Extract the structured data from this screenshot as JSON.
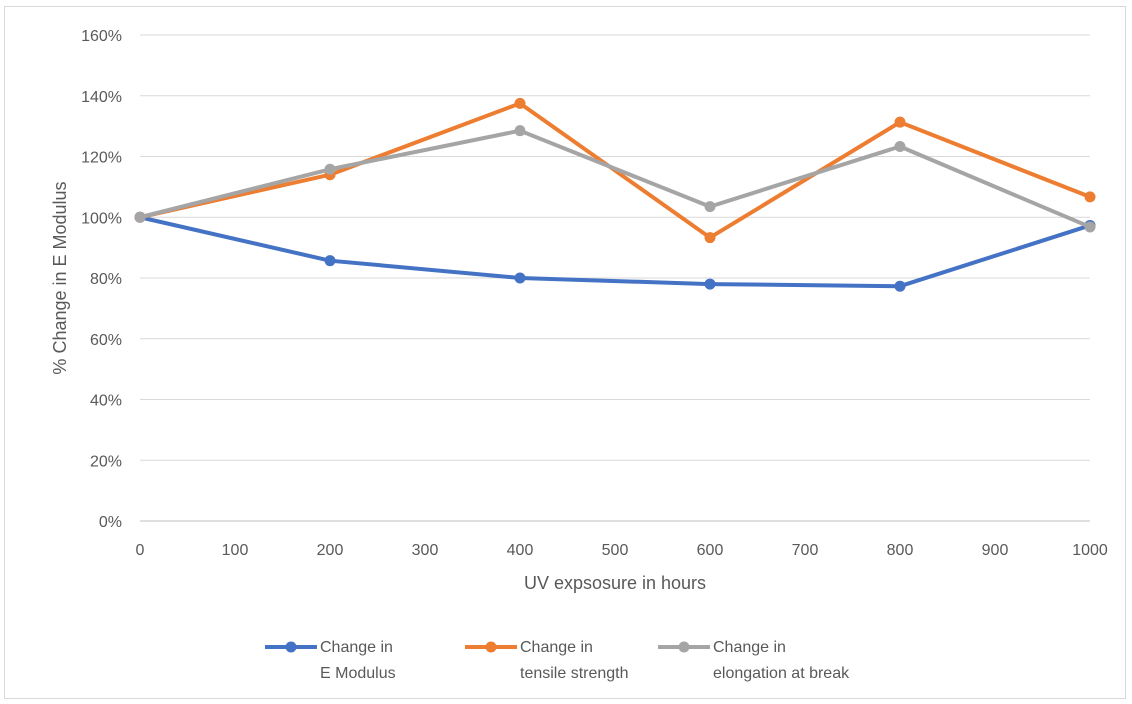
{
  "chart_data": {
    "type": "line",
    "title": "",
    "xlabel": "UV expsosure in hours",
    "ylabel": "% Change in E Modulus",
    "xlim": [
      0,
      1000
    ],
    "ylim": [
      0,
      160
    ],
    "x_ticks": [
      "0",
      "100",
      "200",
      "300",
      "400",
      "500",
      "600",
      "700",
      "800",
      "900",
      "1000"
    ],
    "y_ticks": [
      "0%",
      "20%",
      "40%",
      "60%",
      "80%",
      "100%",
      "120%",
      "140%",
      "160%"
    ],
    "x": [
      0,
      200,
      400,
      600,
      800,
      1000
    ],
    "grid": true,
    "legend_position": "bottom",
    "series": [
      {
        "name": "Change in E Modulus",
        "name_lines": [
          "Change in",
          "E Modulus"
        ],
        "color": "#4472c4",
        "values": [
          100,
          85.7,
          80,
          78,
          77.3,
          97.3
        ]
      },
      {
        "name": "Change in tensile strength",
        "name_lines": [
          "Change in",
          "tensile strength"
        ],
        "color": "#ed7d31",
        "values": [
          100,
          114,
          137.5,
          93.3,
          131.3,
          106.7
        ]
      },
      {
        "name": "Change in elongation at break",
        "name_lines": [
          "Change in",
          "elongation at break"
        ],
        "color": "#a5a5a5",
        "values": [
          100,
          115.8,
          128.5,
          103.5,
          123.3,
          96.8
        ]
      }
    ]
  }
}
